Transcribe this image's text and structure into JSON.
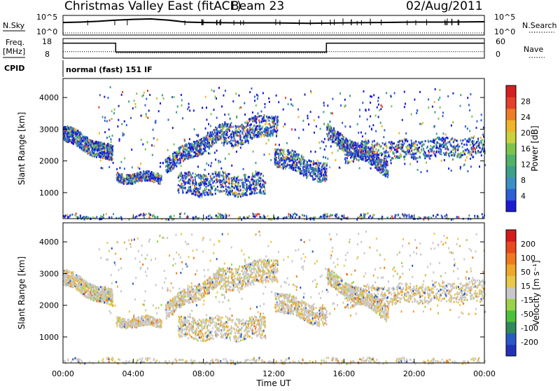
{
  "header": {
    "station": "Christmas Valley East (fitACF)",
    "beam": "Beam 23",
    "date": "02/Aug/2011"
  },
  "panel_labels": {
    "nsky": "N.Sky",
    "nsearch": "N.Search",
    "freq_l1": "Freq.",
    "freq_l2": "[MHz]",
    "nave": "Nave",
    "cpid": "CPID",
    "cpid_value": "normal (fast) 151 IF"
  },
  "colors": {
    "power": [
      "#1b1bd6",
      "#2e5fd6",
      "#3b8ec6",
      "#3ea089",
      "#52b26a",
      "#7cc44e",
      "#c9d23c",
      "#f0b429",
      "#ef7d24",
      "#e5402a",
      "#d61f1f"
    ],
    "velocity": [
      "#2233b8",
      "#2b59c6",
      "#2f8a5a",
      "#4cc23a",
      "#9ad24a",
      "#c8c8c8",
      "#e8c84a",
      "#f0a82a",
      "#ef7a20",
      "#e84a1e",
      "#d61a1a"
    ]
  },
  "chart_data": [
    {
      "type": "line",
      "title": "N.Sky / N.Search",
      "ylabel_left": "N.Sky",
      "ylabel_right": "N.Search",
      "left_ticks": [
        "10^5",
        "10^0"
      ],
      "right_ticks": [
        "10^5",
        "10^0"
      ],
      "x": [
        0,
        1,
        2,
        3,
        4,
        5,
        6,
        7,
        8,
        10,
        12,
        14,
        16,
        18,
        20,
        22,
        24
      ],
      "series": [
        {
          "name": "N.Sky",
          "values": [
            3.2,
            3.3,
            3.5,
            3.8,
            4.0,
            4.1,
            3.8,
            3.3,
            3.2,
            3.1,
            3.1,
            3.0,
            3.1,
            3.2,
            3.3,
            3.3,
            3.4
          ]
        }
      ]
    },
    {
      "type": "line",
      "title": "Freq. / Nave",
      "ylabel_left": "Freq. [MHz]",
      "ylabel_right": "Nave",
      "left_ticks": [
        18,
        8
      ],
      "right_ticks": [
        60,
        0
      ],
      "series": [
        {
          "name": "Freq.",
          "x": [
            0,
            3,
            3,
            15,
            15,
            24
          ],
          "values": [
            15.4,
            15.4,
            10.5,
            10.5,
            15.4,
            15.4
          ]
        },
        {
          "name": "Nave",
          "x": [
            0,
            3,
            3,
            15,
            15,
            24
          ],
          "values": [
            20,
            20,
            16,
            16,
            20,
            20
          ]
        }
      ]
    },
    {
      "type": "heatmap",
      "title": "Power",
      "ylabel": "Slant Range [km]",
      "yticks": [
        1000,
        2000,
        3000,
        4000
      ],
      "ylim": [
        180,
        4600
      ],
      "xlim": [
        0,
        24
      ],
      "colorbar_label": "Power [dB]",
      "colorbar_ticks": [
        4,
        8,
        12,
        16,
        20,
        24,
        28
      ],
      "colorbar_range": [
        0,
        32
      ]
    },
    {
      "type": "heatmap",
      "title": "Velocity",
      "ylabel": "Slant Range [km]",
      "yticks": [
        1000,
        2000,
        3000,
        4000
      ],
      "ylim": [
        180,
        4600
      ],
      "xlim": [
        0,
        24
      ],
      "xlabel": "Time UT",
      "xticks": [
        "00:00",
        "04:00",
        "08:00",
        "12:00",
        "16:00",
        "20:00",
        "00:00"
      ],
      "colorbar_label": "Velocity [m s⁻¹]",
      "colorbar_ticks": [
        "200",
        "100",
        "50",
        "15",
        "-15",
        "-50",
        "-100",
        "-200"
      ]
    }
  ]
}
